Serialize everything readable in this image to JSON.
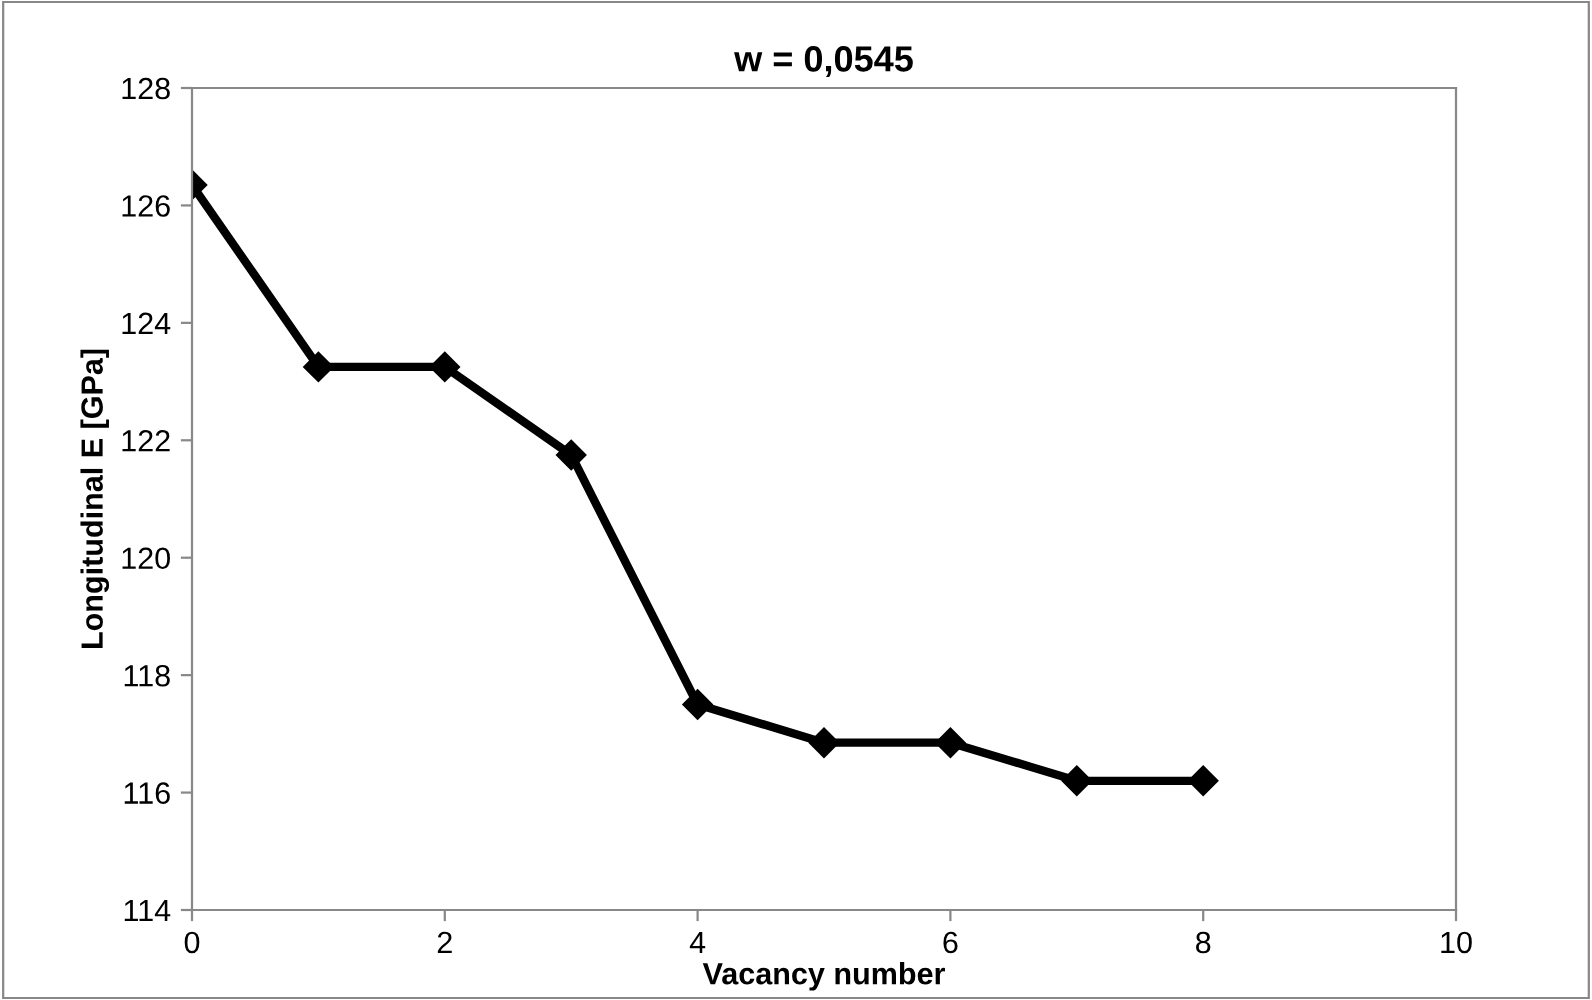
{
  "chart_data": {
    "type": "line",
    "title": "w = 0,0545",
    "xlabel": "Vacancy number",
    "ylabel": "Longitudinal E [GPa]",
    "x": [
      0,
      1,
      2,
      3,
      4,
      5,
      6,
      7,
      8
    ],
    "series": [
      {
        "color": "#000000",
        "values": [
          126.35,
          123.25,
          123.25,
          121.75,
          117.5,
          116.85,
          116.85,
          116.2,
          116.2
        ]
      }
    ],
    "xlim": [
      0,
      10
    ],
    "xticks": [
      0,
      2,
      4,
      6,
      8,
      10
    ],
    "ylim": [
      114,
      128
    ],
    "yticks": [
      114,
      116,
      118,
      120,
      122,
      124,
      126,
      128
    ],
    "grid": false,
    "marker": "diamond",
    "line_style": "solid"
  }
}
